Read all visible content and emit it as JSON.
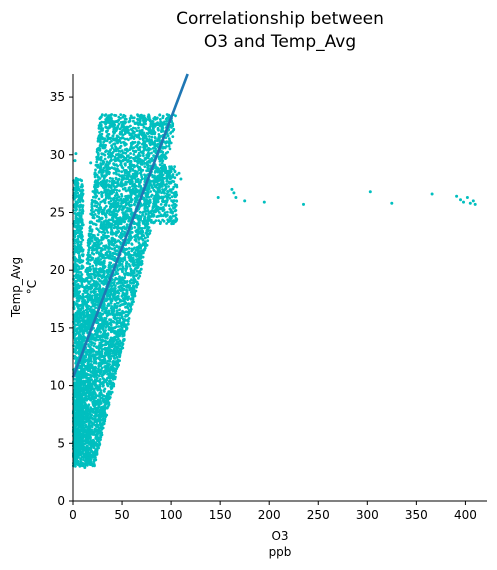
{
  "chart_data": {
    "type": "scatter",
    "title_lines": [
      "Correlationship between",
      "O3 and Temp_Avg"
    ],
    "xlabel_lines": [
      "O3",
      "ppb"
    ],
    "ylabel_lines": [
      "Temp_Avg",
      "°C"
    ],
    "xlim": [
      0,
      422
    ],
    "ylim": [
      0,
      37
    ],
    "xticks": [
      0,
      50,
      100,
      150,
      200,
      250,
      300,
      350,
      400
    ],
    "yticks": [
      0,
      5,
      10,
      15,
      20,
      25,
      30,
      35
    ],
    "grid": false,
    "legend": "none",
    "point_color": "#00bfbf",
    "line_color": "#1f77b4",
    "regression_line": {
      "slope": 0.225,
      "intercept": 10.7
    },
    "main_cloud": {
      "description_free": true,
      "ridge": [
        [
          5,
          3
        ],
        [
          10,
          6
        ],
        [
          15,
          9
        ],
        [
          20,
          12
        ],
        [
          30,
          16
        ],
        [
          40,
          20
        ],
        [
          50,
          24
        ],
        [
          60,
          27
        ],
        [
          70,
          30
        ],
        [
          80,
          32
        ],
        [
          95,
          30
        ],
        [
          105,
          27
        ]
      ],
      "x_spread": [
        [
          3,
          7
        ],
        [
          6,
          10
        ],
        [
          10,
          14
        ],
        [
          15,
          18
        ],
        [
          20,
          22
        ],
        [
          25,
          26
        ],
        [
          30,
          30
        ],
        [
          33,
          32
        ]
      ]
    },
    "outliers": [
      {
        "x": 2,
        "y": 29.5
      },
      {
        "x": 3,
        "y": 30.1
      },
      {
        "x": 18,
        "y": 29.3
      },
      {
        "x": 2,
        "y": 26.4
      },
      {
        "x": 5,
        "y": 22.7
      },
      {
        "x": 3,
        "y": 27.8
      },
      {
        "x": 12,
        "y": 2.9
      },
      {
        "x": 108,
        "y": 28.4
      },
      {
        "x": 110,
        "y": 27.9
      },
      {
        "x": 104,
        "y": 25.7
      },
      {
        "x": 148,
        "y": 26.3
      },
      {
        "x": 162,
        "y": 27.0
      },
      {
        "x": 164,
        "y": 26.7
      },
      {
        "x": 166,
        "y": 26.3
      },
      {
        "x": 175,
        "y": 26.0
      },
      {
        "x": 195,
        "y": 25.9
      },
      {
        "x": 235,
        "y": 25.7
      },
      {
        "x": 303,
        "y": 26.8
      },
      {
        "x": 325,
        "y": 25.8
      },
      {
        "x": 366,
        "y": 26.6
      },
      {
        "x": 391,
        "y": 26.4
      },
      {
        "x": 395,
        "y": 26.1
      },
      {
        "x": 398,
        "y": 25.9
      },
      {
        "x": 402,
        "y": 26.3
      },
      {
        "x": 405,
        "y": 25.8
      },
      {
        "x": 408,
        "y": 26.0
      },
      {
        "x": 410,
        "y": 25.7
      }
    ]
  }
}
